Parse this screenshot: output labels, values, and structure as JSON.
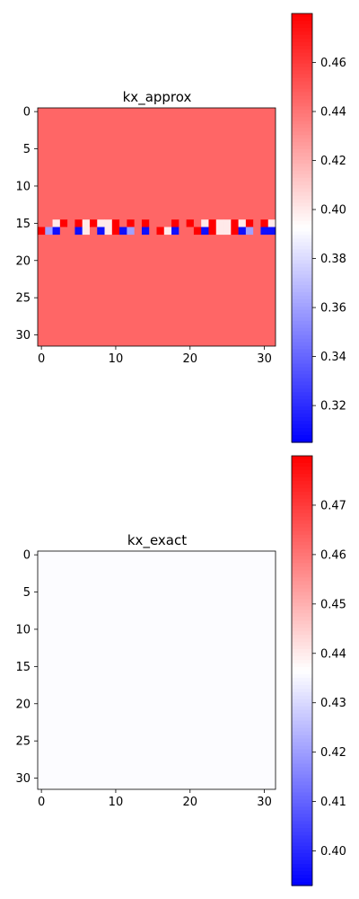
{
  "chart_data": [
    {
      "type": "heatmap",
      "title": "kx_approx",
      "xlim": [
        -0.5,
        31.5
      ],
      "ylim": [
        31.5,
        -0.5
      ],
      "x_ticks": [
        0,
        10,
        20,
        30
      ],
      "y_ticks": [
        0,
        5,
        10,
        15,
        20,
        25,
        30
      ],
      "grid": false,
      "grid_size": [
        32,
        32
      ],
      "background_value": 0.445,
      "rows": [
        {
          "row": 15,
          "values": [
            0.445,
            0.445,
            0.4,
            0.48,
            0.445,
            0.48,
            0.4,
            0.48,
            0.4,
            0.4,
            0.48,
            0.445,
            0.48,
            0.445,
            0.48,
            0.445,
            0.445,
            0.445,
            0.48,
            0.445,
            0.48,
            0.445,
            0.4,
            0.48,
            0.4,
            0.4,
            0.48,
            0.4,
            0.48,
            0.445,
            0.48,
            0.4
          ]
        },
        {
          "row": 16,
          "values": [
            0.48,
            0.36,
            0.31,
            0.445,
            0.445,
            0.31,
            0.4,
            0.445,
            0.31,
            0.4,
            0.48,
            0.31,
            0.36,
            0.445,
            0.31,
            0.445,
            0.48,
            0.4,
            0.31,
            0.445,
            0.445,
            0.48,
            0.31,
            0.48,
            0.4,
            0.4,
            0.48,
            0.31,
            0.36,
            0.445,
            0.31,
            0.31
          ]
        }
      ],
      "colorbar": {
        "cmap": "bwr",
        "vmin": 0.305,
        "vmax": 0.48,
        "ticks": [
          0.32,
          0.34,
          0.36,
          0.38,
          0.4,
          0.42,
          0.44,
          0.46
        ],
        "tick_labels": [
          "0.32",
          "0.34",
          "0.36",
          "0.38",
          "0.40",
          "0.42",
          "0.44",
          "0.46"
        ]
      }
    },
    {
      "type": "heatmap",
      "title": "kx_exact",
      "xlim": [
        -0.5,
        31.5
      ],
      "ylim": [
        31.5,
        -0.5
      ],
      "x_ticks": [
        0,
        10,
        20,
        30
      ],
      "y_ticks": [
        0,
        5,
        10,
        15,
        20,
        25,
        30
      ],
      "grid": false,
      "grid_size": [
        32,
        32
      ],
      "background_value": 0.436,
      "rows": [],
      "colorbar": {
        "cmap": "bwr",
        "vmin": 0.393,
        "vmax": 0.48,
        "ticks": [
          0.4,
          0.41,
          0.42,
          0.43,
          0.44,
          0.45,
          0.46,
          0.47
        ],
        "tick_labels": [
          "0.40",
          "0.41",
          "0.42",
          "0.43",
          "0.44",
          "0.45",
          "0.46",
          "0.47"
        ]
      }
    }
  ]
}
